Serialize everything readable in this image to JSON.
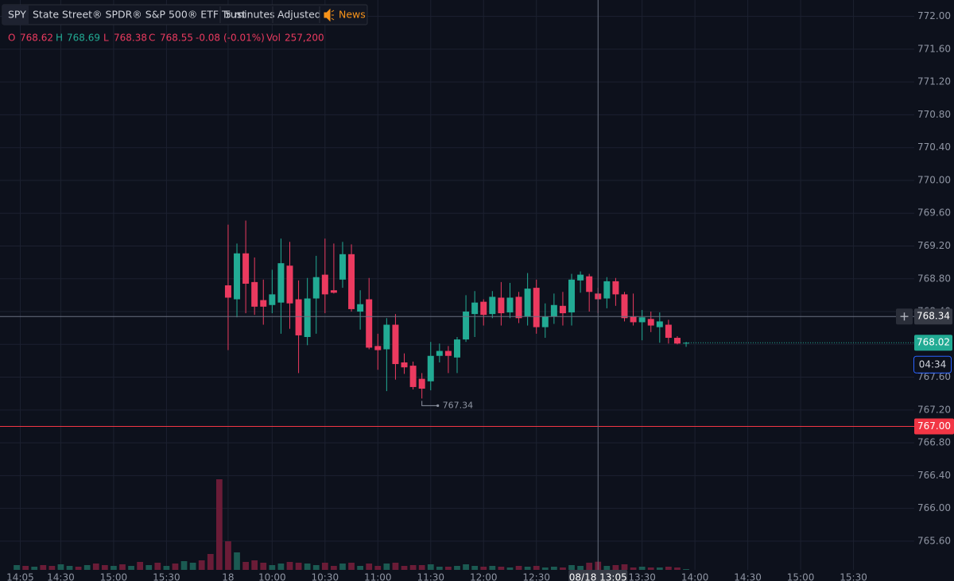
{
  "chart_data": {
    "type": "candlestick",
    "symbol": "SPY",
    "name": "State Street® SPDR® S&P 500® ETF Trust",
    "interval": "5 minutes",
    "adjustment": "Adjusted",
    "news": "News",
    "legend": {
      "open_label": "O",
      "high_label": "H",
      "low_label": "L",
      "close_label": "C",
      "change": {
        "value": -0.08,
        "label": "-0.08"
      },
      "change_percent": {
        "value": -0.01,
        "label": "(-0.01%)"
      },
      "volume_label": "Vol",
      "volume": {
        "value": 257200,
        "label": "257,200"
      }
    },
    "up_color": "#22ab94",
    "down_color": "#eb3a5f",
    "x": [
      0,
      1,
      2,
      3,
      4,
      5,
      6,
      7,
      8,
      9,
      10,
      11,
      12,
      13,
      14,
      15,
      16,
      17,
      18,
      19,
      20,
      21,
      22,
      23,
      24,
      25,
      26,
      27,
      28,
      29,
      30,
      31,
      32,
      33,
      34,
      35,
      36,
      37,
      38,
      39,
      40,
      41,
      42,
      43,
      44,
      45,
      46,
      47,
      48,
      49,
      50,
      51,
      52
    ],
    "open": [
      768.72,
      768.55,
      769.11,
      768.76,
      768.54,
      768.48,
      768.51,
      768.96,
      768.55,
      768.09,
      768.56,
      768.85,
      768.66,
      768.79,
      769.1,
      768.4,
      768.55,
      767.98,
      767.94,
      768.24,
      767.78,
      767.74,
      767.58,
      767.55,
      767.86,
      767.92,
      767.84,
      768.06,
      768.37,
      768.52,
      768.37,
      768.57,
      768.39,
      768.58,
      768.34,
      768.69,
      768.21,
      768.34,
      768.47,
      768.39,
      768.78,
      768.83,
      768.62,
      768.56,
      768.77,
      768.61,
      768.34,
      768.27,
      768.31,
      768.21,
      768.24,
      768.08,
      768.01
    ],
    "high": [
      769.46,
      769.23,
      769.51,
      769.06,
      768.79,
      768.91,
      769.29,
      769.25,
      768.78,
      768.81,
      769.08,
      769.29,
      769.23,
      769.25,
      769.22,
      768.66,
      768.81,
      768.13,
      768.32,
      768.37,
      767.89,
      767.79,
      767.65,
      768.03,
      768.01,
      767.98,
      768.09,
      768.6,
      768.65,
      768.55,
      768.65,
      768.76,
      768.75,
      768.64,
      768.87,
      768.79,
      768.5,
      768.62,
      768.64,
      768.86,
      768.89,
      768.86,
      768.69,
      768.82,
      768.81,
      768.64,
      768.62,
      768.42,
      768.4,
      768.39,
      768.3,
      768.1,
      768.03
    ],
    "low": [
      767.93,
      768.33,
      768.38,
      768.36,
      768.24,
      768.38,
      768.13,
      768.19,
      767.65,
      767.99,
      768.13,
      768.38,
      768.62,
      768.69,
      768.4,
      768.18,
      767.94,
      767.69,
      767.43,
      767.57,
      767.64,
      767.45,
      767.34,
      767.44,
      767.78,
      767.65,
      767.65,
      768.03,
      768.09,
      768.23,
      768.32,
      768.23,
      768.32,
      768.26,
      768.23,
      768.13,
      768.08,
      768.25,
      768.23,
      768.23,
      768.63,
      768.4,
      768.38,
      768.44,
      768.47,
      768.28,
      768.23,
      768.05,
      768.15,
      768.02,
      768.01,
      768.0,
      767.97
    ],
    "close": [
      768.57,
      769.11,
      768.74,
      768.46,
      768.46,
      768.61,
      768.99,
      768.5,
      768.11,
      768.56,
      768.82,
      768.61,
      768.63,
      769.1,
      768.43,
      768.49,
      767.96,
      767.93,
      768.24,
      767.76,
      767.72,
      767.48,
      767.46,
      767.86,
      767.92,
      767.86,
      768.06,
      768.4,
      768.51,
      768.36,
      768.58,
      768.38,
      768.57,
      768.32,
      768.68,
      768.21,
      768.34,
      768.48,
      768.38,
      768.79,
      768.85,
      768.64,
      768.55,
      768.77,
      768.61,
      768.32,
      768.27,
      768.33,
      768.23,
      768.28,
      768.08,
      768.01,
      768.02
    ],
    "low_marker_index": 22,
    "volume": {
      "x": [
        -24,
        -23,
        -22,
        -21,
        -20,
        -19,
        -18,
        -17,
        -16,
        -15,
        -14,
        -13,
        -12,
        -11,
        -10,
        -9,
        -8,
        -7,
        -6,
        -5,
        -4,
        -3,
        -2,
        -1,
        0,
        1,
        2,
        3,
        4,
        5,
        6,
        7,
        8,
        9,
        10,
        11,
        12,
        13,
        14,
        15,
        16,
        17,
        18,
        19,
        20,
        21,
        22,
        23,
        24,
        25,
        26,
        27,
        28,
        29,
        30,
        31,
        32,
        33,
        34,
        35,
        36,
        37,
        38,
        39,
        40,
        41,
        42,
        43,
        44,
        45,
        46,
        47,
        48,
        49,
        50,
        51,
        52
      ],
      "values": [
        150000,
        125000,
        100000,
        150000,
        125000,
        175000,
        125000,
        100000,
        150000,
        200000,
        150000,
        125000,
        175000,
        125000,
        250000,
        150000,
        225000,
        125000,
        200000,
        275000,
        225000,
        300000,
        500000,
        2850000,
        900000,
        550000,
        250000,
        300000,
        225000,
        150000,
        200000,
        250000,
        225000,
        200000,
        150000,
        225000,
        125000,
        200000,
        225000,
        125000,
        200000,
        125000,
        200000,
        225000,
        125000,
        150000,
        150000,
        175000,
        100000,
        100000,
        125000,
        175000,
        125000,
        100000,
        125000,
        100000,
        75000,
        125000,
        100000,
        125000,
        75000,
        100000,
        75000,
        150000,
        125000,
        225000,
        257200,
        125000,
        150000,
        175000,
        75000,
        100000,
        75000,
        75000,
        100000,
        75000,
        25000
      ],
      "colors": [
        "#1b5a52",
        "#6a1c37",
        "#1b5a52",
        "#6a1c37",
        "#6a1c37",
        "#1b5a52",
        "#1b5a52",
        "#6a1c37",
        "#1b5a52",
        "#6a1c37",
        "#6a1c37",
        "#1b5a52",
        "#6a1c37",
        "#1b5a52",
        "#6a1c37",
        "#1b5a52",
        "#6a1c37",
        "#1b5a52",
        "#6a1c37",
        "#1b5a52",
        "#1b5a52",
        "#6a1c37",
        "#6a1c37",
        "#6a1c37",
        "#6a1c37",
        "#1b5a52",
        "#6a1c37",
        "#6a1c37",
        "#6a1c37",
        "#1b5a52",
        "#1b5a52",
        "#6a1c37",
        "#6a1c37",
        "#1b5a52",
        "#1b5a52",
        "#6a1c37",
        "#6a1c37",
        "#1b5a52",
        "#6a1c37",
        "#1b5a52",
        "#6a1c37",
        "#6a1c37",
        "#1b5a52",
        "#6a1c37",
        "#6a1c37",
        "#6a1c37",
        "#6a1c37",
        "#1b5a52",
        "#1b5a52",
        "#6a1c37",
        "#1b5a52",
        "#1b5a52",
        "#1b5a52",
        "#6a1c37",
        "#1b5a52",
        "#6a1c37",
        "#1b5a52",
        "#6a1c37",
        "#1b5a52",
        "#6a1c37",
        "#1b5a52",
        "#1b5a52",
        "#6a1c37",
        "#1b5a52",
        "#1b5a52",
        "#6a1c37",
        "#6a1c37",
        "#1b5a52",
        "#6a1c37",
        "#6a1c37",
        "#6a1c37",
        "#1b5a52",
        "#6a1c37",
        "#1b5a52",
        "#6a1c37",
        "#6a1c37",
        "#1b5a52"
      ],
      "ylim": [
        0,
        3750000
      ]
    },
    "xlim": [
      -25.9,
      77.9
    ],
    "ylim": [
      765.25,
      772.2
    ],
    "xticks": [
      {
        "value": -23.6,
        "label": "14:05"
      },
      {
        "value": -19,
        "label": "14:30"
      },
      {
        "value": -13,
        "label": "15:00"
      },
      {
        "value": -7,
        "label": "15:30"
      },
      {
        "value": 0,
        "label": "18"
      },
      {
        "value": 5,
        "label": "10:00"
      },
      {
        "value": 11,
        "label": "10:30"
      },
      {
        "value": 17,
        "label": "11:00"
      },
      {
        "value": 23,
        "label": "11:30"
      },
      {
        "value": 29,
        "label": "12:00"
      },
      {
        "value": 35,
        "label": "12:30"
      },
      {
        "value": 47,
        "label": "13:30"
      },
      {
        "value": 53,
        "label": "14:00"
      },
      {
        "value": 59,
        "label": "14:30"
      },
      {
        "value": 65,
        "label": "15:00"
      },
      {
        "value": 71,
        "label": "15:30"
      }
    ],
    "yticks": [
      {
        "value": 765.6,
        "label": "765.60"
      },
      {
        "value": 766,
        "label": "766.00"
      },
      {
        "value": 766.4,
        "label": "766.40"
      },
      {
        "value": 766.8,
        "label": "766.80"
      },
      {
        "value": 767.2,
        "label": "767.20"
      },
      {
        "value": 767.6,
        "label": "767.60"
      },
      {
        "value": 768,
        "label": "768.00"
      },
      {
        "value": 768.4,
        "label": "768.40"
      },
      {
        "value": 768.8,
        "label": "768.80"
      },
      {
        "value": 769.2,
        "label": "769.20"
      },
      {
        "value": 769.6,
        "label": "769.60"
      },
      {
        "value": 770,
        "label": "770.00"
      },
      {
        "value": 770.4,
        "label": "770.40"
      },
      {
        "value": 770.8,
        "label": "770.80"
      },
      {
        "value": 771.2,
        "label": "771.20"
      },
      {
        "value": 771.6,
        "label": "771.60"
      },
      {
        "value": 772,
        "label": "772.00"
      }
    ],
    "grid": true,
    "alert_line": {
      "value": 767,
      "label": "767.00",
      "color": "#f23645"
    },
    "crosshair": {
      "x": 42,
      "x_label": "08/18 13:05",
      "y": 768.34
    },
    "countdown": "04:34"
  }
}
